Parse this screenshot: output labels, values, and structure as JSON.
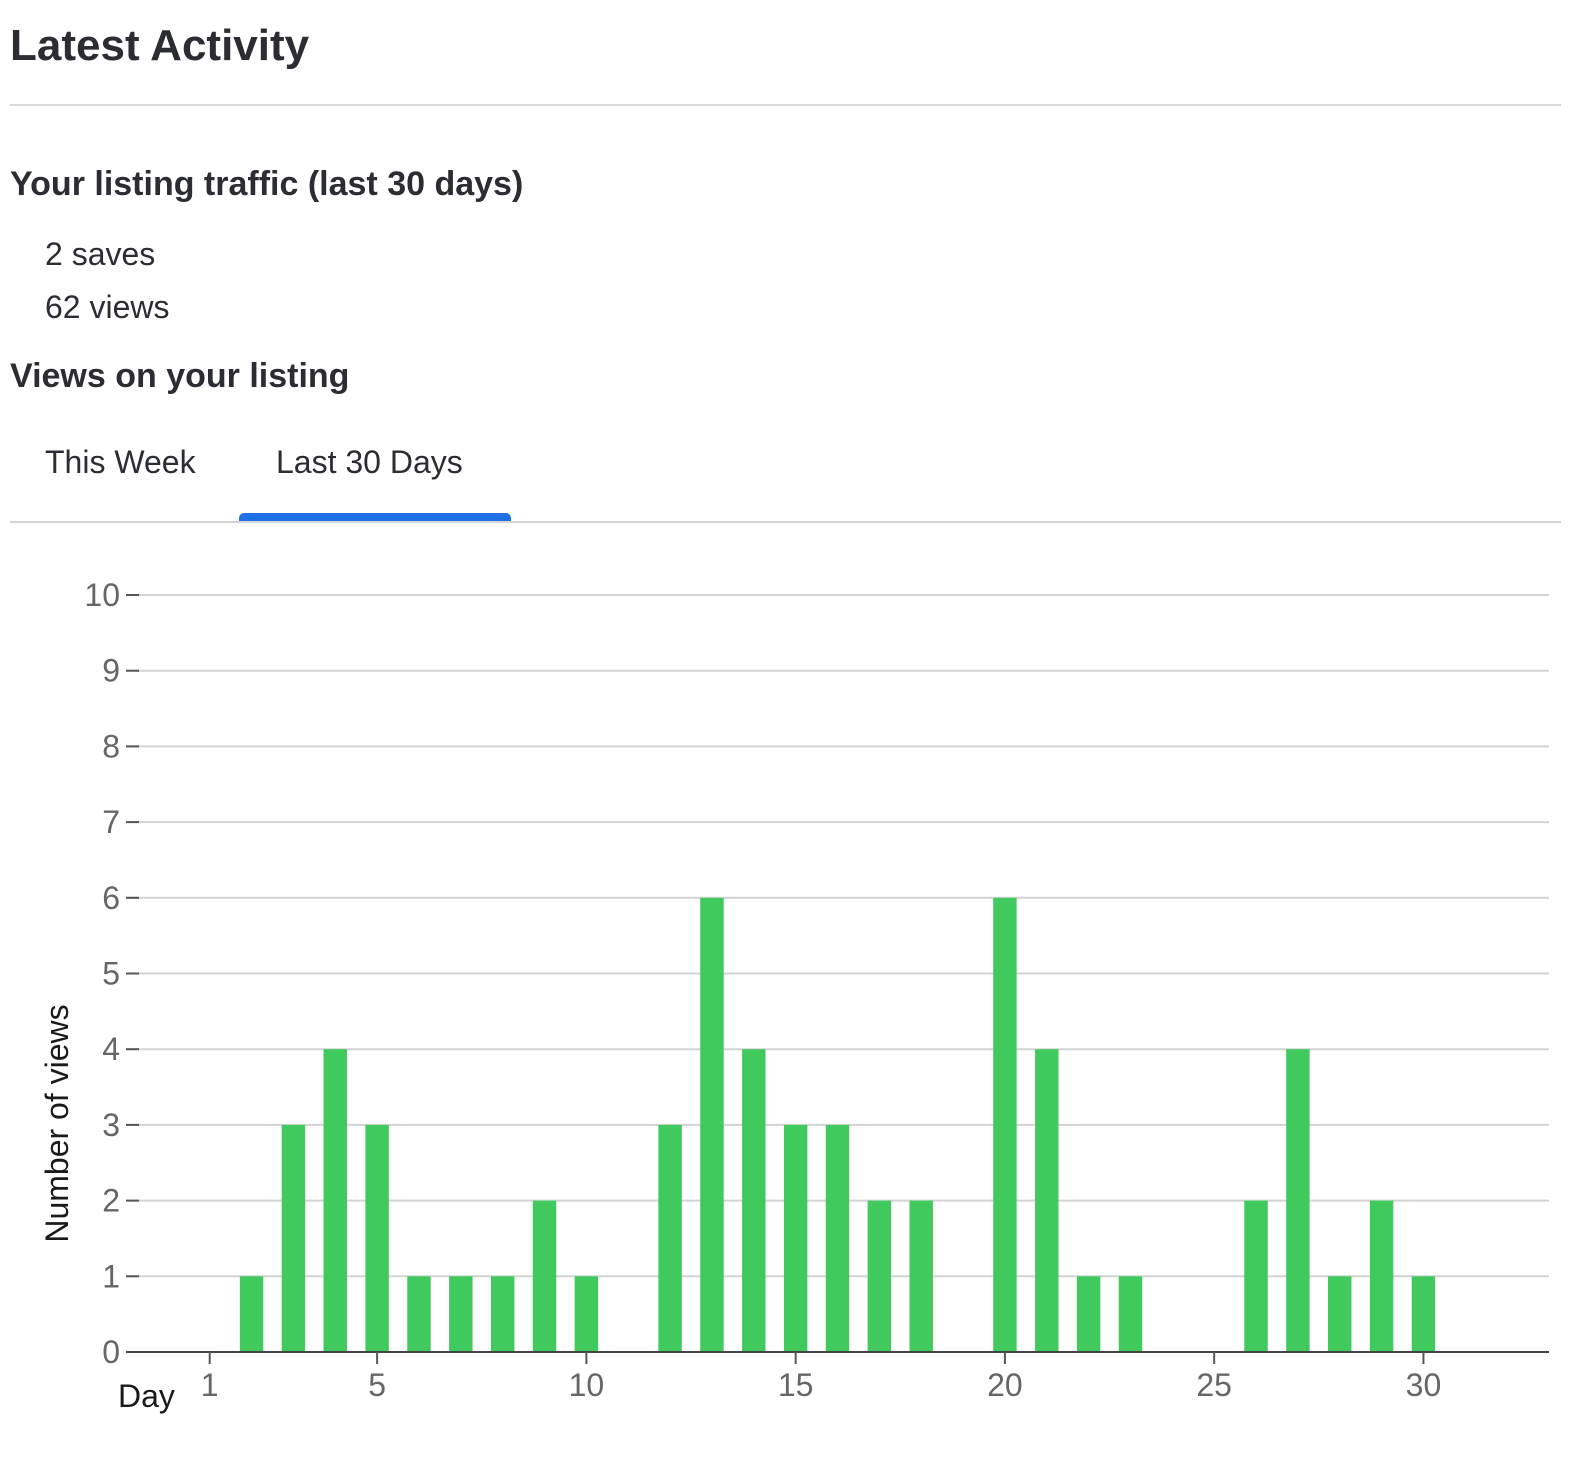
{
  "page": {
    "title": "Latest Activity"
  },
  "traffic": {
    "heading": "Your listing traffic (last 30 days)",
    "saves": "2 saves",
    "views": "62 views"
  },
  "views_section": {
    "heading": "Views on your listing",
    "tabs": [
      {
        "label": "This Week",
        "active": false
      },
      {
        "label": "Last 30 Days",
        "active": true
      }
    ],
    "active_tab_color": "#1f6fe5"
  },
  "chart_data": {
    "type": "bar",
    "title": "",
    "xlabel": "Day",
    "ylabel": "Number of views",
    "x": [
      1,
      2,
      3,
      4,
      5,
      6,
      7,
      8,
      9,
      10,
      11,
      12,
      13,
      14,
      15,
      16,
      17,
      18,
      19,
      20,
      21,
      22,
      23,
      24,
      25,
      26,
      27,
      28,
      29,
      30
    ],
    "values": [
      0,
      1,
      3,
      4,
      3,
      1,
      1,
      1,
      2,
      1,
      0,
      3,
      6,
      4,
      3,
      3,
      2,
      2,
      0,
      6,
      4,
      1,
      1,
      0,
      0,
      2,
      4,
      1,
      2,
      1
    ],
    "xticks": [
      1,
      5,
      10,
      15,
      20,
      25,
      30
    ],
    "yticks": [
      0,
      1,
      2,
      3,
      4,
      5,
      6,
      7,
      8,
      9,
      10
    ],
    "xlim": [
      -1,
      33
    ],
    "ylim": [
      0,
      10
    ],
    "grid": true,
    "bar_color": "#40c95c"
  }
}
